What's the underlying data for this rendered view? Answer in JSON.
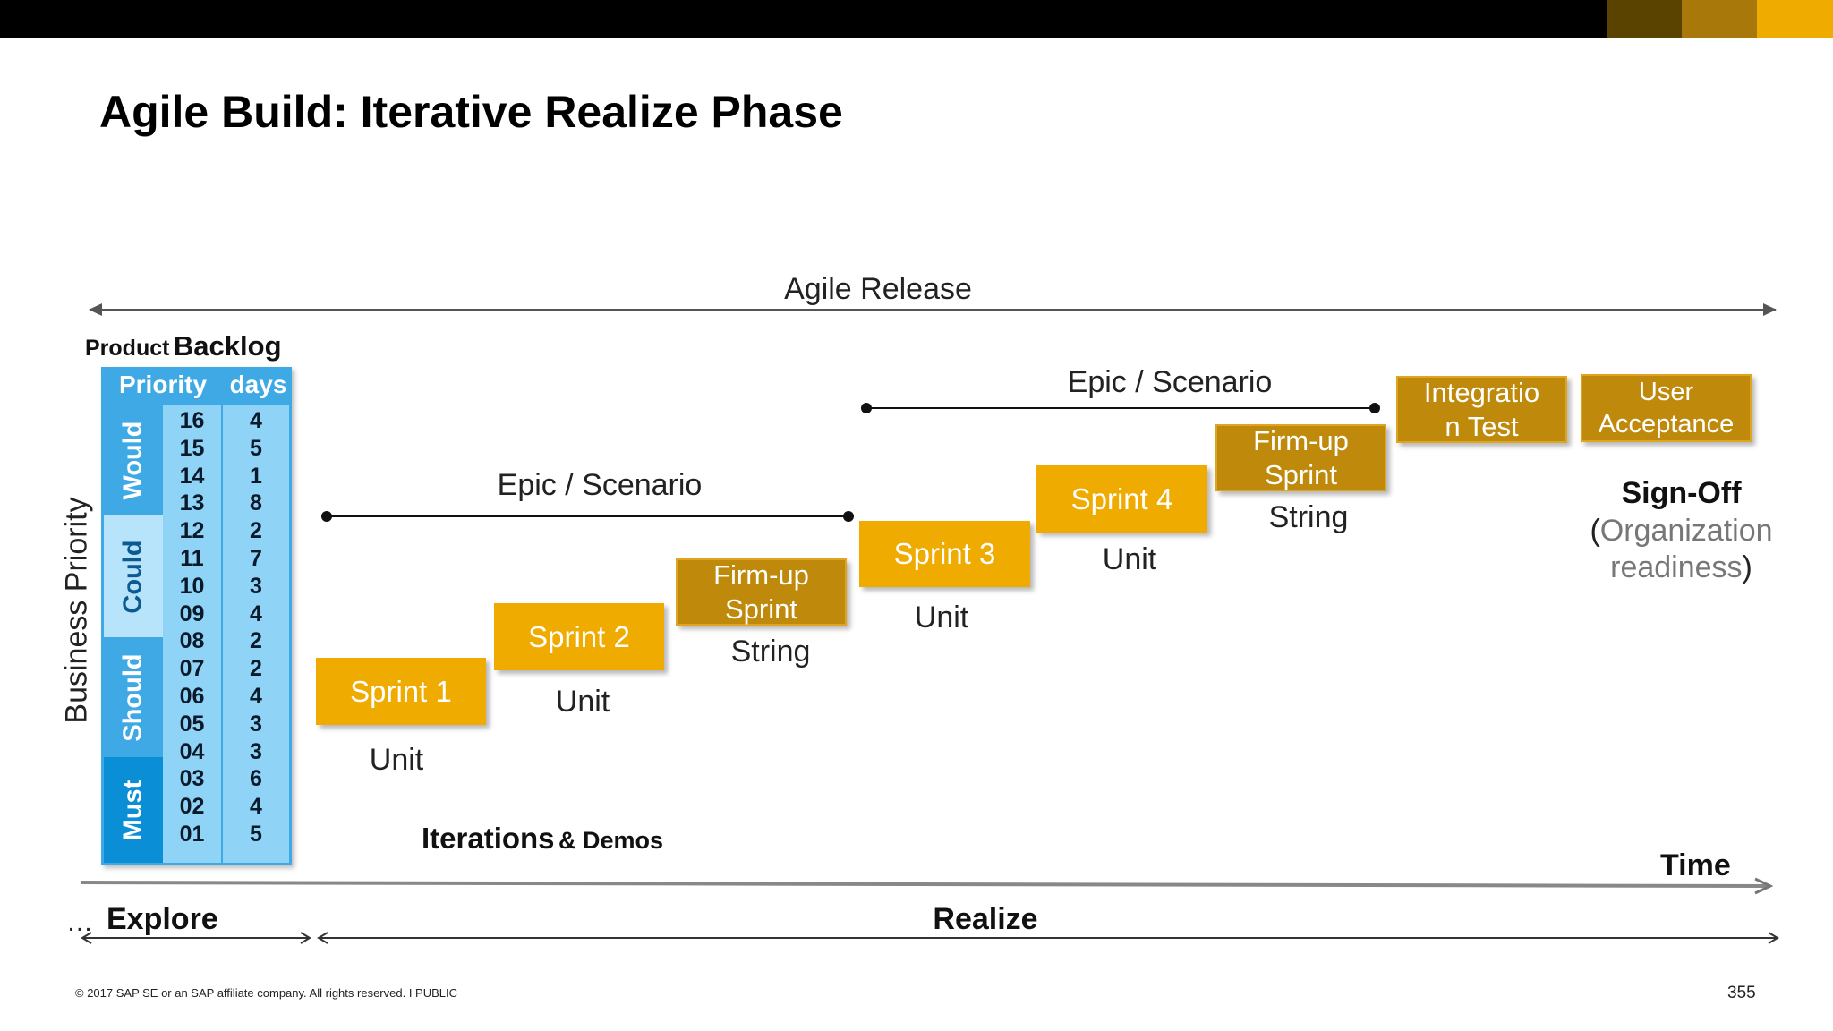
{
  "slide": {
    "title": "Agile Build: Iterative Realize Phase",
    "top_bar_colors": [
      "#000000",
      "#5a4300",
      "#a8780a",
      "#efab00"
    ],
    "agile_release": "Agile Release",
    "product_label_small": "Product",
    "product_label_big": "Backlog",
    "business_priority": "Business Priority",
    "backlog": {
      "header_priority": "Priority",
      "header_days": "days",
      "categories": [
        "Would",
        "Could",
        "Should",
        "Must"
      ],
      "priorities": [
        "16",
        "15",
        "14",
        "13",
        "12",
        "11",
        "10",
        "09",
        "08",
        "07",
        "06",
        "05",
        "04",
        "03",
        "02",
        "01"
      ],
      "days": [
        "4",
        "5",
        "1",
        "8",
        "2",
        "7",
        "3",
        "4",
        "2",
        "2",
        "4",
        "3",
        "3",
        "6",
        "4",
        "5"
      ]
    },
    "epic1": "Epic / Scenario",
    "epic2": "Epic / Scenario",
    "sprints": {
      "s1": "Sprint 1",
      "s2": "Sprint 2",
      "f1": "Firm-up Sprint",
      "s3": "Sprint 3",
      "s4": "Sprint 4",
      "f2": "Firm-up Sprint",
      "integ": "Integratio n Test",
      "ua": "User Acceptance"
    },
    "captions": {
      "s1": "Unit",
      "s2": "Unit",
      "f1": "String",
      "s3": "Unit",
      "s4": "Unit",
      "f2": "String"
    },
    "signoff_bold": "Sign-Off",
    "signoff_open": "(",
    "signoff_sub": "Organization readiness",
    "signoff_close": ")",
    "iterations_big": "Iterations",
    "iterations_small": "& Demos",
    "time": "Time",
    "ellipsis": "…",
    "explore": "Explore",
    "realize": "Realize",
    "footer": "© 2017 SAP SE or an SAP affiliate company. All rights reserved.  I  PUBLIC",
    "page_number": "355"
  }
}
